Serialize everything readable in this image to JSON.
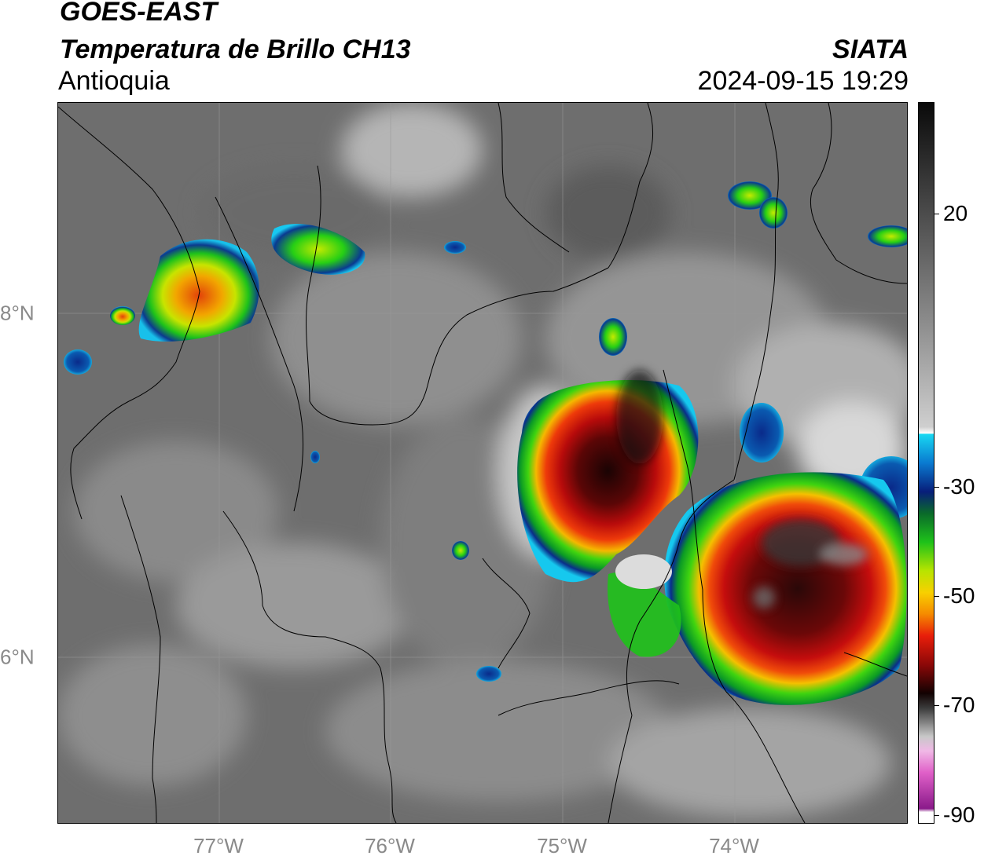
{
  "header": {
    "satellite": "GOES-EAST",
    "product": "Temperatura de Brillo CH13",
    "region": "Antioquia",
    "organization": "SIATA",
    "datetime": "2024-09-15 19:29"
  },
  "map": {
    "x_ticks": [
      "77°W",
      "76°W",
      "75°W",
      "74°W"
    ],
    "y_ticks": [
      "8°N",
      "6°N"
    ]
  },
  "colorbar": {
    "ticks": [
      "20",
      "-30",
      "-50",
      "-70",
      "-90"
    ]
  }
}
